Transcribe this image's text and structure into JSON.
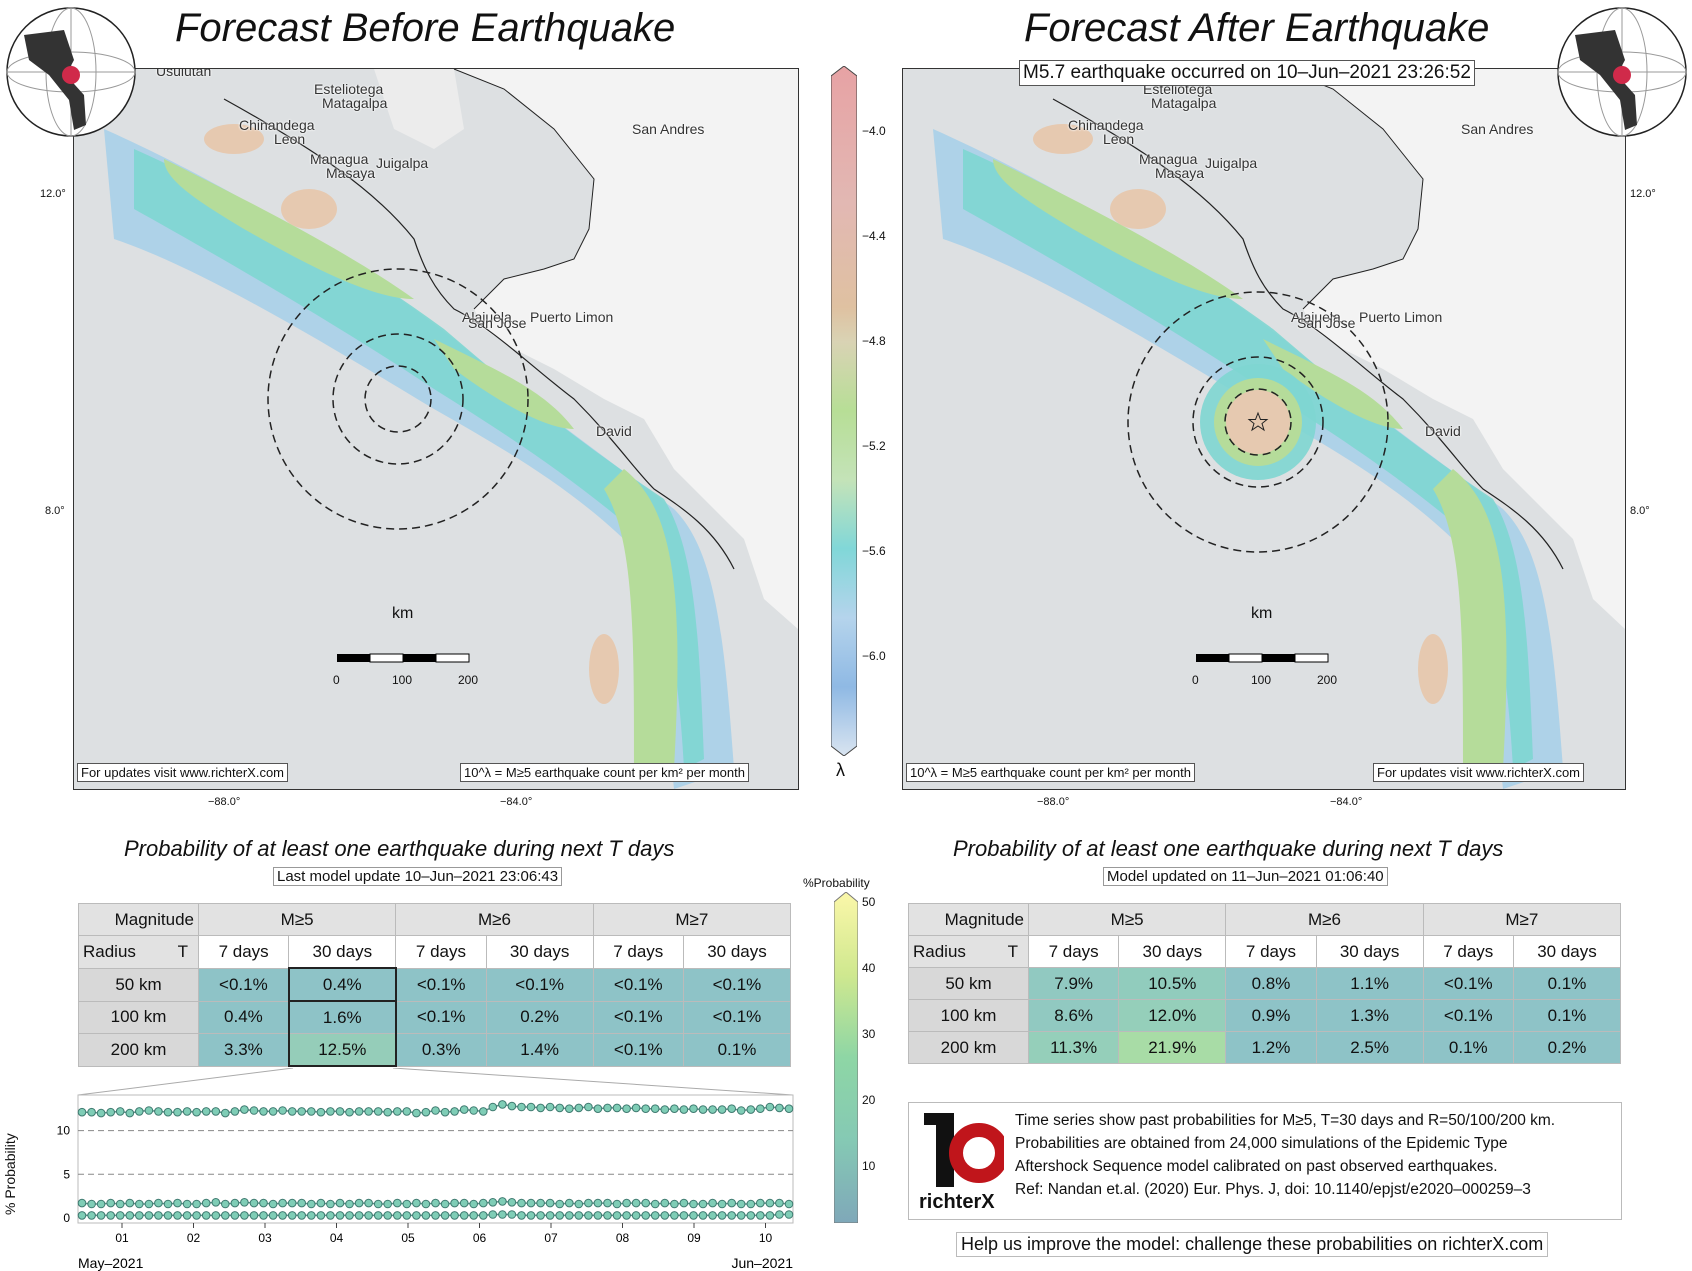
{
  "left": {
    "title": "Forecast Before Earthquake",
    "updates_note": "For updates visit www.richterX.com",
    "units_note": "10^λ = M≥5 earthquake count per km² per month",
    "table_title": "Probability of at least one earthquake during next T days",
    "table_subtitle": "Last model update 10–Jun–2021 23:06:43",
    "rows": [
      {
        "radius": "50 km",
        "vals": [
          "<0.1%",
          "0.4%",
          "<0.1%",
          "<0.1%",
          "<0.1%",
          "<0.1%"
        ]
      },
      {
        "radius": "100 km",
        "vals": [
          "0.4%",
          "1.6%",
          "<0.1%",
          "0.2%",
          "<0.1%",
          "<0.1%"
        ]
      },
      {
        "radius": "200 km",
        "vals": [
          "3.3%",
          "12.5%",
          "0.3%",
          "1.4%",
          "<0.1%",
          "0.1%"
        ]
      }
    ]
  },
  "right": {
    "title": "Forecast After Earthquake",
    "event_note": "M5.7 earthquake occurred on 10–Jun–2021 23:26:52",
    "updates_note": "For updates visit www.richterX.com",
    "units_note": "10^λ = M≥5 earthquake count per km² per month",
    "table_title": "Probability of at least one earthquake during next T days",
    "table_subtitle": "Model updated on 11–Jun–2021 01:06:40",
    "rows": [
      {
        "radius": "50 km",
        "vals": [
          "7.9%",
          "10.5%",
          "0.8%",
          "1.1%",
          "<0.1%",
          "0.1%"
        ]
      },
      {
        "radius": "100 km",
        "vals": [
          "8.6%",
          "12.0%",
          "0.9%",
          "1.3%",
          "<0.1%",
          "0.1%"
        ]
      },
      {
        "radius": "200 km",
        "vals": [
          "11.3%",
          "21.9%",
          "1.2%",
          "2.5%",
          "0.1%",
          "0.2%"
        ]
      }
    ]
  },
  "table_headers": {
    "magnitude": "Magnitude",
    "radius": "Radius",
    "t": "T",
    "m5": "M≥5",
    "m6": "M≥6",
    "m7": "M≥7",
    "d7": "7 days",
    "d30": "30 days"
  },
  "map_labels": {
    "cities": [
      "Usulutan",
      "Esteliotega",
      "Matagalpa",
      "Chinandega",
      "Leon",
      "Managua",
      "Masaya",
      "Juigalpa",
      "San Andres",
      "Alajuela",
      "San Jose",
      "Puerto Limon",
      "David"
    ],
    "lat_12": "12.0°",
    "lat_8": "8.0°",
    "lon_88": "−88.0°",
    "lon_84": "−84.0°",
    "km": "km",
    "scale": [
      "0",
      "100",
      "200"
    ]
  },
  "lambda_colorbar": {
    "label": "λ",
    "ticks": [
      "−4.0",
      "−4.4",
      "−4.8",
      "−5.2",
      "−5.6",
      "−6.0"
    ]
  },
  "prob_colorbar": {
    "label": "%Probability",
    "ticks": [
      "50",
      "40",
      "30",
      "20",
      "10"
    ]
  },
  "chart_data": {
    "type": "line",
    "ylabel": "% Probability",
    "yticks": [
      0,
      5,
      10
    ],
    "ylim": [
      0,
      13.5
    ],
    "xticks": [
      "01",
      "02",
      "03",
      "04",
      "05",
      "06",
      "07",
      "08",
      "09",
      "10"
    ],
    "x_start_label": "May–2021",
    "x_end_label": "Jun–2021",
    "series": [
      {
        "values": [
          12.1,
          12.1,
          12.0,
          12.1,
          12.2,
          12.0,
          12.2,
          12.3,
          12.2,
          12.1,
          12.1,
          12.2,
          12.1,
          12.2,
          12.2,
          12.0,
          12.2,
          12.4,
          12.3,
          12.2,
          12.2,
          12.3,
          12.2,
          12.2,
          12.2,
          12.1,
          12.2,
          12.2,
          12.1,
          12.2,
          12.2,
          12.2,
          12.1,
          12.2,
          12.2,
          12.0,
          12.1,
          12.3,
          12.1,
          12.2,
          12.4,
          12.3,
          12.2,
          12.7,
          13.0,
          12.8,
          12.7,
          12.7,
          12.6,
          12.7,
          12.6,
          12.5,
          12.6,
          12.7,
          12.5,
          12.6,
          12.6,
          12.5,
          12.6,
          12.5,
          12.5,
          12.4,
          12.5,
          12.4,
          12.5,
          12.4,
          12.4,
          12.4,
          12.5,
          12.3,
          12.4,
          12.5,
          12.7,
          12.6,
          12.5
        ]
      },
      {
        "values": [
          1.7,
          1.6,
          1.6,
          1.7,
          1.6,
          1.7,
          1.6,
          1.6,
          1.7,
          1.6,
          1.7,
          1.6,
          1.6,
          1.7,
          1.8,
          1.6,
          1.7,
          1.8,
          1.7,
          1.7,
          1.6,
          1.7,
          1.7,
          1.7,
          1.6,
          1.7,
          1.6,
          1.7,
          1.6,
          1.7,
          1.7,
          1.6,
          1.6,
          1.7,
          1.6,
          1.7,
          1.6,
          1.7,
          1.6,
          1.7,
          1.7,
          1.6,
          1.7,
          1.8,
          1.9,
          1.8,
          1.7,
          1.7,
          1.7,
          1.7,
          1.6,
          1.7,
          1.6,
          1.7,
          1.7,
          1.7,
          1.6,
          1.7,
          1.7,
          1.7,
          1.6,
          1.7,
          1.6,
          1.7,
          1.6,
          1.6,
          1.7,
          1.6,
          1.7,
          1.6,
          1.6,
          1.7,
          1.7,
          1.7,
          1.6
        ]
      },
      {
        "values": [
          0.3,
          0.3,
          0.3,
          0.3,
          0.3,
          0.3,
          0.3,
          0.3,
          0.3,
          0.3,
          0.3,
          0.3,
          0.3,
          0.3,
          0.3,
          0.3,
          0.3,
          0.3,
          0.3,
          0.3,
          0.3,
          0.3,
          0.3,
          0.3,
          0.3,
          0.3,
          0.3,
          0.3,
          0.3,
          0.3,
          0.3,
          0.3,
          0.3,
          0.3,
          0.3,
          0.3,
          0.3,
          0.3,
          0.3,
          0.3,
          0.3,
          0.3,
          0.3,
          0.4,
          0.4,
          0.4,
          0.3,
          0.3,
          0.3,
          0.3,
          0.3,
          0.3,
          0.3,
          0.3,
          0.3,
          0.3,
          0.3,
          0.3,
          0.3,
          0.3,
          0.3,
          0.3,
          0.3,
          0.3,
          0.3,
          0.3,
          0.3,
          0.3,
          0.3,
          0.3,
          0.3,
          0.3,
          0.3,
          0.4,
          0.4
        ]
      }
    ]
  },
  "info": {
    "lines": [
      "Time series show past probabilities for M≥5, T=30 days and R=50/100/200 km.",
      "Probabilities are obtained from 24,000 simulations of the Epidemic Type",
      "Aftershock Sequence model calibrated on past observed earthquakes.",
      "Ref: Nandan et.al. (2020) Eur. Phys. J, doi: 10.1140/epjst/e2020–000259–3"
    ],
    "logo_text": "richterX",
    "help": "Help us improve the model: challenge these probabilities on richterX.com"
  },
  "colors": {
    "cell_low": "#8ec3c7",
    "cell_mid": "#a6d7b8",
    "cell_hi": "#b6e3a6",
    "land": "#f3f3f3",
    "sea": "#dde0e2"
  }
}
